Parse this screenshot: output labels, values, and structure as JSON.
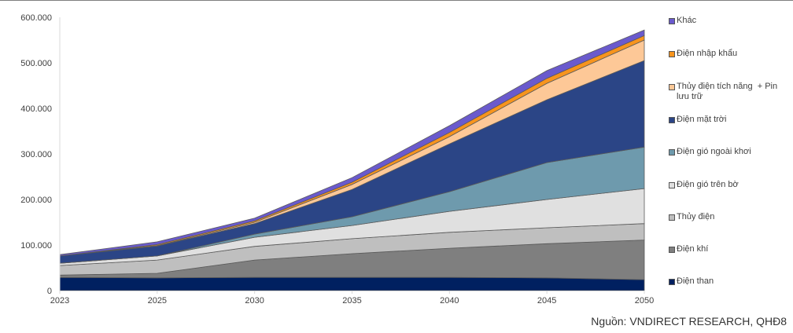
{
  "chart_data": {
    "type": "area",
    "stacked": true,
    "title": "",
    "xlabel": "",
    "ylabel": "",
    "categories": [
      "2023",
      "2025",
      "2030",
      "2035",
      "2040",
      "2045",
      "2050"
    ],
    "ylim": [
      0,
      600000
    ],
    "yticks": [
      0,
      100000,
      200000,
      300000,
      400000,
      500000,
      600000
    ],
    "ytick_labels": [
      "0",
      "100.000",
      "200.000",
      "300.000",
      "400.000",
      "500.000",
      "600.000"
    ],
    "grid": false,
    "legend_position": "right",
    "series": [
      {
        "name": "Điện than",
        "color": "#002060",
        "values": [
          29000,
          28000,
          29000,
          29000,
          29000,
          28000,
          24000
        ]
      },
      {
        "name": "Điện khí",
        "color": "#7f7f7f",
        "values": [
          5000,
          10000,
          38000,
          52000,
          64000,
          75000,
          87000
        ]
      },
      {
        "name": "Thủy điện",
        "color": "#bfbfbf",
        "values": [
          21000,
          29000,
          30000,
          33000,
          35000,
          35000,
          36000
        ]
      },
      {
        "name": "Điện gió trên bờ",
        "color": "#e0e0e0",
        "values": [
          5000,
          9000,
          20000,
          29000,
          46000,
          62000,
          77000
        ]
      },
      {
        "name": "Điện gió ngoài khơi",
        "color": "#6e9aad",
        "values": [
          0,
          0,
          7000,
          19000,
          43000,
          81000,
          91000
        ]
      },
      {
        "name": "Điện mặt trời",
        "color": "#2b4586",
        "values": [
          16000,
          22000,
          23000,
          60000,
          105000,
          138000,
          190000
        ]
      },
      {
        "name": "Thủy điện tích năng  + Pin lưu trữ",
        "color": "#fdc897",
        "values": [
          0,
          1000,
          3000,
          11000,
          16000,
          36000,
          45000
        ]
      },
      {
        "name": "Điện nhập khẩu",
        "color": "#f7941d",
        "values": [
          0,
          2000,
          3000,
          5000,
          9000,
          11000,
          10000
        ]
      },
      {
        "name": "Khác",
        "color": "#6a5acd",
        "values": [
          3000,
          6000,
          6000,
          10000,
          15000,
          17000,
          12000
        ]
      }
    ],
    "legend_order": [
      "Khác",
      "Điện nhập khẩu",
      "Thủy điện tích năng  + Pin lưu trữ",
      "Điện mặt trời",
      "Điện gió ngoài khơi",
      "Điện gió trên bờ",
      "Thủy điện",
      "Điện khí",
      "Điện than"
    ]
  },
  "source": "Nguồn: VNDIRECT RESEARCH, QHĐ8"
}
